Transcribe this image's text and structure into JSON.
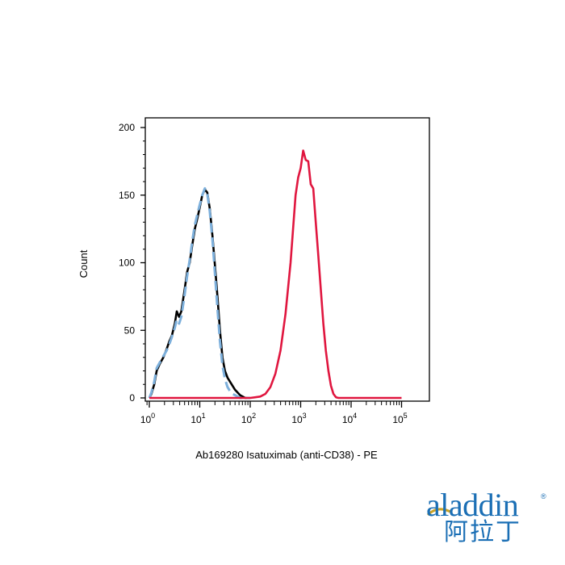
{
  "chart_data": {
    "type": "line",
    "title": "",
    "xlabel": "Ab169280 Isatuximab (anti-CD38) - PE",
    "ylabel": "Count",
    "x_scale": "log",
    "xlim": [
      1,
      100000
    ],
    "ylim": [
      0,
      200
    ],
    "grid": false,
    "y_ticks": [
      0,
      50,
      100,
      150,
      200
    ],
    "x_ticks": [
      {
        "base": "10",
        "exp": "0"
      },
      {
        "base": "10",
        "exp": "1"
      },
      {
        "base": "10",
        "exp": "2"
      },
      {
        "base": "10",
        "exp": "3"
      },
      {
        "base": "10",
        "exp": "4"
      },
      {
        "base": "10",
        "exp": "5"
      }
    ],
    "series": [
      {
        "color": "#000000",
        "dash": "solid",
        "points": [
          [
            1.0,
            0
          ],
          [
            1.1,
            3
          ],
          [
            1.25,
            10
          ],
          [
            1.4,
            20
          ],
          [
            1.6,
            25
          ],
          [
            1.9,
            30
          ],
          [
            2.2,
            36
          ],
          [
            2.5,
            42
          ],
          [
            2.8,
            46
          ],
          [
            3.2,
            55
          ],
          [
            3.5,
            64
          ],
          [
            3.9,
            60
          ],
          [
            4.3,
            64
          ],
          [
            5.0,
            80
          ],
          [
            5.6,
            93
          ],
          [
            6.3,
            100
          ],
          [
            7.1,
            113
          ],
          [
            8.0,
            125
          ],
          [
            9.0,
            133
          ],
          [
            10.0,
            141
          ],
          [
            11.2,
            150
          ],
          [
            12.6,
            154
          ],
          [
            14.1,
            152
          ],
          [
            15.8,
            140
          ],
          [
            17.8,
            120
          ],
          [
            20.0,
            98
          ],
          [
            22.4,
            75
          ],
          [
            25.1,
            50
          ],
          [
            28.2,
            30
          ],
          [
            31.6,
            20
          ],
          [
            35.5,
            15
          ],
          [
            39.8,
            12
          ],
          [
            44.7,
            9
          ],
          [
            50.1,
            6
          ],
          [
            56.2,
            4
          ],
          [
            63.1,
            2
          ],
          [
            70.8,
            1
          ],
          [
            79.4,
            0
          ],
          [
            100,
            0
          ]
        ]
      },
      {
        "color": "#7db0dc",
        "dash": "dashed",
        "points": [
          [
            1.0,
            0
          ],
          [
            1.1,
            4
          ],
          [
            1.25,
            12
          ],
          [
            1.4,
            22
          ],
          [
            1.6,
            26
          ],
          [
            1.9,
            31
          ],
          [
            2.2,
            35
          ],
          [
            2.5,
            40
          ],
          [
            2.8,
            45
          ],
          [
            3.2,
            52
          ],
          [
            3.5,
            58
          ],
          [
            3.9,
            55
          ],
          [
            4.3,
            60
          ],
          [
            5.0,
            76
          ],
          [
            5.6,
            90
          ],
          [
            6.3,
            102
          ],
          [
            7.1,
            116
          ],
          [
            8.0,
            128
          ],
          [
            9.0,
            136
          ],
          [
            10.0,
            143
          ],
          [
            11.2,
            150
          ],
          [
            12.6,
            155
          ],
          [
            14.1,
            151
          ],
          [
            15.8,
            138
          ],
          [
            17.8,
            117
          ],
          [
            20.0,
            92
          ],
          [
            22.4,
            66
          ],
          [
            25.1,
            42
          ],
          [
            28.2,
            24
          ],
          [
            31.6,
            14
          ],
          [
            35.5,
            8
          ],
          [
            39.8,
            5
          ],
          [
            44.7,
            3
          ],
          [
            50.1,
            2
          ],
          [
            56.2,
            1
          ],
          [
            63.1,
            0
          ],
          [
            100,
            0
          ]
        ]
      },
      {
        "color": "#e0163f",
        "dash": "solid",
        "points": [
          [
            1.0,
            0
          ],
          [
            100,
            0
          ],
          [
            126,
            0.5
          ],
          [
            158,
            1
          ],
          [
            200,
            3
          ],
          [
            251,
            8
          ],
          [
            316,
            18
          ],
          [
            398,
            35
          ],
          [
            501,
            62
          ],
          [
            631,
            100
          ],
          [
            708,
            125
          ],
          [
            794,
            150
          ],
          [
            891,
            163
          ],
          [
            1000,
            170
          ],
          [
            1122,
            183
          ],
          [
            1259,
            176
          ],
          [
            1413,
            175
          ],
          [
            1585,
            158
          ],
          [
            1778,
            155
          ],
          [
            1995,
            130
          ],
          [
            2239,
            105
          ],
          [
            2512,
            80
          ],
          [
            2818,
            55
          ],
          [
            3162,
            35
          ],
          [
            3548,
            20
          ],
          [
            3981,
            9
          ],
          [
            4467,
            3
          ],
          [
            5012,
            0.5
          ],
          [
            5623,
            0
          ],
          [
            100000,
            0
          ]
        ]
      }
    ]
  },
  "logo": {
    "brand_latin": "aladdin",
    "brand_cn": "阿拉丁",
    "reg_mark": "®",
    "color": "#1b6fb5",
    "accent": "#c9a227"
  }
}
